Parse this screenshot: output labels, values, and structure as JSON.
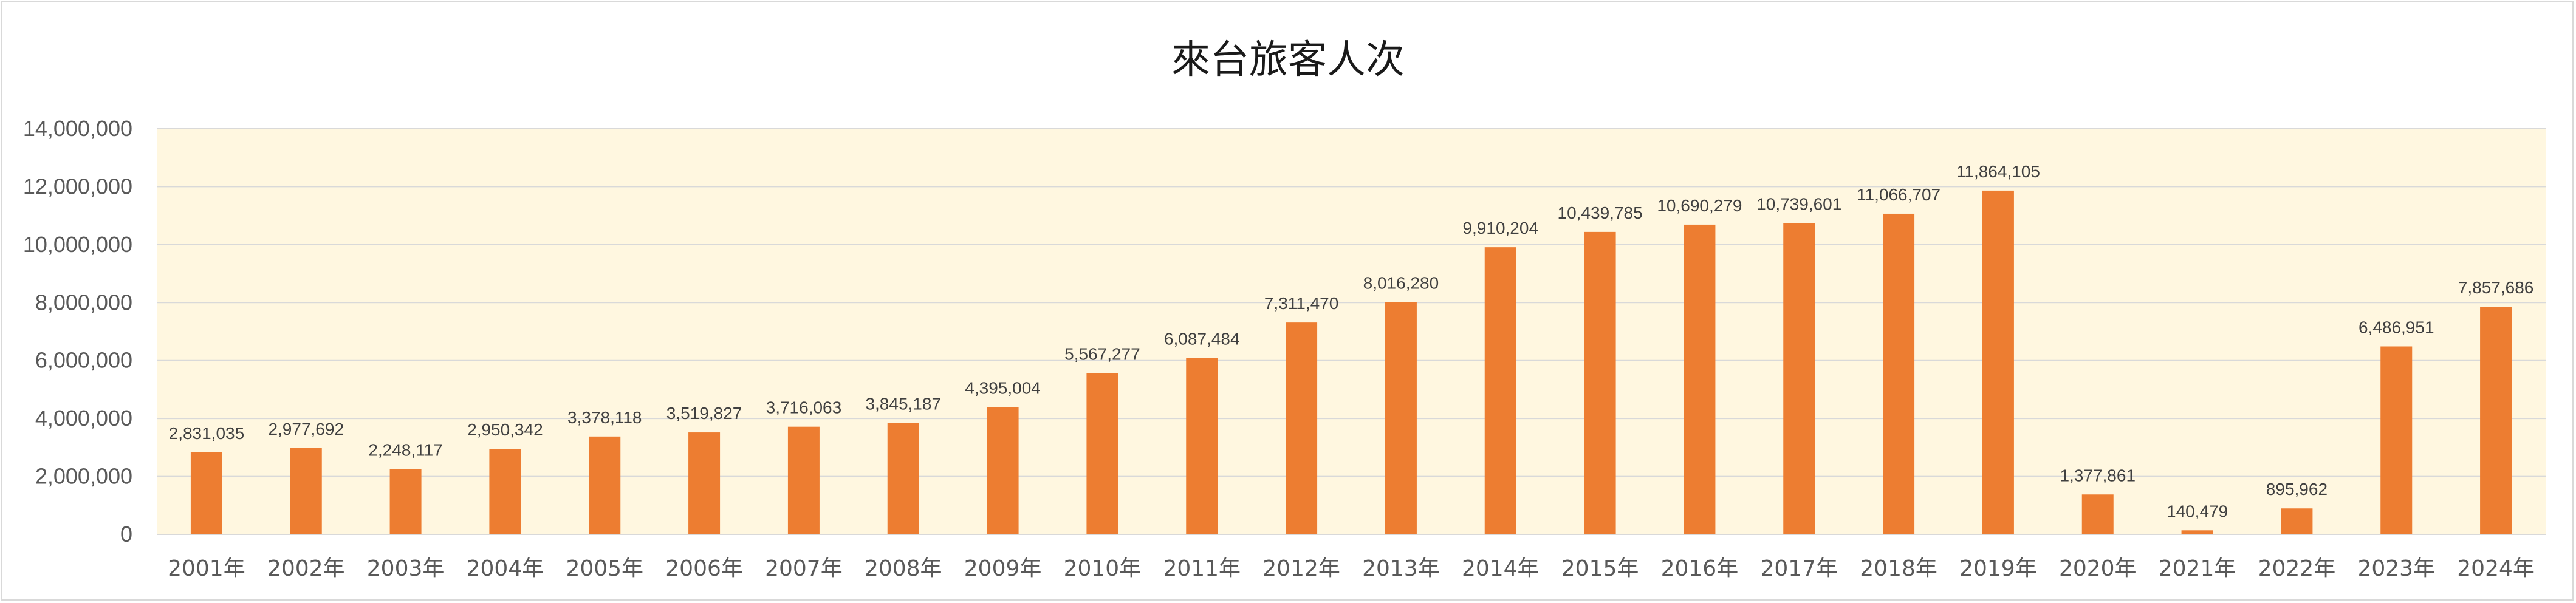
{
  "chart_data": {
    "type": "bar",
    "title": "來台旅客人次",
    "xlabel": "",
    "ylabel": "",
    "ylim": [
      0,
      14000000
    ],
    "yticks": [
      0,
      2000000,
      4000000,
      6000000,
      8000000,
      10000000,
      12000000,
      14000000
    ],
    "ytick_labels": [
      "0",
      "2,000,000",
      "4,000,000",
      "6,000,000",
      "8,000,000",
      "10,000,000",
      "12,000,000",
      "14,000,000"
    ],
    "grid": true,
    "legend": "none",
    "categories": [
      "2001年",
      "2002年",
      "2003年",
      "2004年",
      "2005年",
      "2006年",
      "2007年",
      "2008年",
      "2009年",
      "2010年",
      "2011年",
      "2012年",
      "2013年",
      "2014年",
      "2015年",
      "2016年",
      "2017年",
      "2018年",
      "2019年",
      "2020年",
      "2021年",
      "2022年",
      "2023年",
      "2024年"
    ],
    "values": [
      2831035,
      2977692,
      2248117,
      2950342,
      3378118,
      3519827,
      3716063,
      3845187,
      4395004,
      5567277,
      6087484,
      7311470,
      8016280,
      9910204,
      10439785,
      10690279,
      10739601,
      11066707,
      11864105,
      1377861,
      140479,
      895962,
      6486951,
      7857686
    ],
    "data_labels": [
      "2,831,035",
      "2,977,692",
      "2,248,117",
      "2,950,342",
      "3,378,118",
      "3,519,827",
      "3,716,063",
      "3,845,187",
      "4,395,004",
      "5,567,277",
      "6,087,484",
      "7,311,470",
      "8,016,280",
      "9,910,204",
      "10,439,785",
      "10,690,279",
      "10,739,601",
      "11,066,707",
      "11,864,105",
      "1,377,861",
      "140,479",
      "895,962",
      "6,486,951",
      "7,857,686"
    ],
    "colors": {
      "bar": "#ed7d31",
      "plot_background": "#fff7e0",
      "gridline": "#d9d9d9",
      "axis": "#d9d9d9"
    }
  }
}
